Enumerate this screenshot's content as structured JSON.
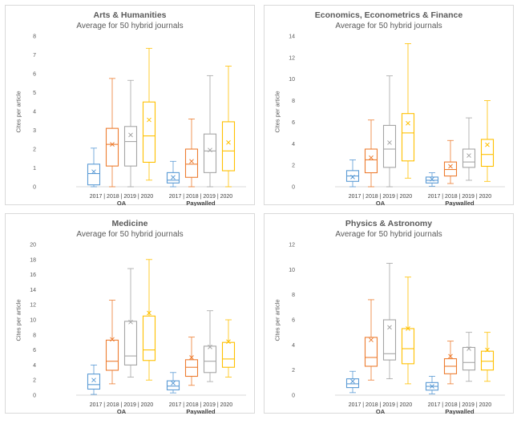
{
  "chart_data": [
    {
      "type": "box",
      "title": "Arts & Humanities",
      "subtitle": "Average for 50 hybrid journals",
      "ylabel": "Cites per article",
      "ylim": [
        0,
        8
      ],
      "yticks": [
        0,
        1,
        2,
        3,
        4,
        5,
        6,
        7,
        8
      ],
      "groups": [
        "OA",
        "Paywalled"
      ],
      "categories": [
        "2017",
        "2018",
        "2019",
        "2020"
      ],
      "series": [
        {
          "group": "OA",
          "year": "2017",
          "min": 0,
          "q1": 0.1,
          "median": 0.7,
          "q3": 1.2,
          "max": 2.05,
          "mean": 0.8
        },
        {
          "group": "OA",
          "year": "2018",
          "min": 0,
          "q1": 1.1,
          "median": 2.25,
          "q3": 3.1,
          "max": 5.75,
          "mean": 2.25
        },
        {
          "group": "OA",
          "year": "2019",
          "min": 0,
          "q1": 1.1,
          "median": 2.4,
          "q3": 3.2,
          "max": 5.65,
          "mean": 2.75
        },
        {
          "group": "OA",
          "year": "2020",
          "min": 0.35,
          "q1": 1.3,
          "median": 2.7,
          "q3": 4.5,
          "max": 7.35,
          "mean": 3.55
        },
        {
          "group": "Paywalled",
          "year": "2017",
          "min": 0,
          "q1": 0.2,
          "median": 0.35,
          "q3": 0.75,
          "max": 1.35,
          "mean": 0.5
        },
        {
          "group": "Paywalled",
          "year": "2018",
          "min": 0,
          "q1": 0.5,
          "median": 1.2,
          "q3": 2.0,
          "max": 3.6,
          "mean": 1.35
        },
        {
          "group": "Paywalled",
          "year": "2019",
          "min": 0,
          "q1": 0.75,
          "median": 1.9,
          "q3": 2.8,
          "max": 5.9,
          "mean": 1.95
        },
        {
          "group": "Paywalled",
          "year": "2020",
          "min": 0,
          "q1": 0.85,
          "median": 1.9,
          "q3": 3.45,
          "max": 6.4,
          "mean": 2.35
        }
      ]
    },
    {
      "type": "box",
      "title": "Economics, Econometrics & Finance",
      "subtitle": "Average for 50 hybrid journals",
      "ylabel": "Cites per article",
      "ylim": [
        0,
        14
      ],
      "yticks": [
        0,
        2,
        4,
        6,
        8,
        10,
        12,
        14
      ],
      "groups": [
        "OA",
        "Paywalled"
      ],
      "categories": [
        "2017",
        "2018",
        "2019",
        "2020"
      ],
      "series": [
        {
          "group": "OA",
          "year": "2017",
          "min": 0,
          "q1": 0.5,
          "median": 1.0,
          "q3": 1.5,
          "max": 2.5,
          "mean": 0.9
        },
        {
          "group": "OA",
          "year": "2018",
          "min": 0,
          "q1": 1.3,
          "median": 2.5,
          "q3": 3.5,
          "max": 6.2,
          "mean": 2.7
        },
        {
          "group": "OA",
          "year": "2019",
          "min": 0,
          "q1": 1.8,
          "median": 3.5,
          "q3": 5.7,
          "max": 10.3,
          "mean": 4.1
        },
        {
          "group": "OA",
          "year": "2020",
          "min": 0.8,
          "q1": 2.4,
          "median": 5.0,
          "q3": 6.8,
          "max": 13.3,
          "mean": 5.9
        },
        {
          "group": "Paywalled",
          "year": "2017",
          "min": 0.05,
          "q1": 0.35,
          "median": 0.6,
          "q3": 0.9,
          "max": 1.3,
          "mean": 0.7
        },
        {
          "group": "Paywalled",
          "year": "2018",
          "min": 0.3,
          "q1": 1.0,
          "median": 1.6,
          "q3": 2.3,
          "max": 4.3,
          "mean": 1.9
        },
        {
          "group": "Paywalled",
          "year": "2019",
          "min": 0.6,
          "q1": 1.8,
          "median": 2.3,
          "q3": 3.5,
          "max": 6.4,
          "mean": 2.9
        },
        {
          "group": "Paywalled",
          "year": "2020",
          "min": 0.5,
          "q1": 1.9,
          "median": 3.0,
          "q3": 4.4,
          "max": 8.0,
          "mean": 3.9
        }
      ]
    },
    {
      "type": "box",
      "title": "Medicine",
      "subtitle": "Average for 50 hybrid journals",
      "ylabel": "Cites per article",
      "ylim": [
        0,
        20
      ],
      "yticks": [
        0,
        2,
        4,
        6,
        8,
        10,
        12,
        14,
        16,
        18,
        20
      ],
      "groups": [
        "OA",
        "Paywalled"
      ],
      "categories": [
        "2017",
        "2018",
        "2019",
        "2020"
      ],
      "series": [
        {
          "group": "OA",
          "year": "2017",
          "min": 0.1,
          "q1": 0.8,
          "median": 1.4,
          "q3": 2.8,
          "max": 4.0,
          "mean": 2.0
        },
        {
          "group": "OA",
          "year": "2018",
          "min": 1.5,
          "q1": 3.3,
          "median": 4.5,
          "q3": 7.3,
          "max": 12.6,
          "mean": 7.4
        },
        {
          "group": "OA",
          "year": "2019",
          "min": 2.4,
          "q1": 4.0,
          "median": 5.2,
          "q3": 9.8,
          "max": 16.8,
          "mean": 9.7
        },
        {
          "group": "OA",
          "year": "2020",
          "min": 2.0,
          "q1": 4.6,
          "median": 6.0,
          "q3": 10.5,
          "max": 18.0,
          "mean": 10.9
        },
        {
          "group": "Paywalled",
          "year": "2017",
          "min": 0.3,
          "q1": 0.7,
          "median": 1.2,
          "q3": 1.9,
          "max": 3.0,
          "mean": 1.6
        },
        {
          "group": "Paywalled",
          "year": "2018",
          "min": 1.3,
          "q1": 2.5,
          "median": 3.7,
          "q3": 4.7,
          "max": 7.7,
          "mean": 5.0
        },
        {
          "group": "Paywalled",
          "year": "2019",
          "min": 1.8,
          "q1": 3.0,
          "median": 4.5,
          "q3": 6.5,
          "max": 11.2,
          "mean": 6.4
        },
        {
          "group": "Paywalled",
          "year": "2020",
          "min": 2.4,
          "q1": 3.7,
          "median": 4.8,
          "q3": 7.0,
          "max": 10.0,
          "mean": 7.1
        }
      ]
    },
    {
      "type": "box",
      "title": "Physics & Astronomy",
      "subtitle": "Average for 50 hybrid journals",
      "ylabel": "Cites per article",
      "ylim": [
        0,
        12
      ],
      "yticks": [
        0,
        2,
        4,
        6,
        8,
        10,
        12
      ],
      "groups": [
        "OA",
        "Paywalled"
      ],
      "categories": [
        "2017",
        "2018",
        "2019",
        "2020"
      ],
      "series": [
        {
          "group": "OA",
          "year": "2017",
          "min": 0.2,
          "q1": 0.6,
          "median": 0.9,
          "q3": 1.3,
          "max": 1.9,
          "mean": 1.1
        },
        {
          "group": "OA",
          "year": "2018",
          "min": 1.2,
          "q1": 2.3,
          "median": 3.0,
          "q3": 4.6,
          "max": 7.6,
          "mean": 4.4
        },
        {
          "group": "OA",
          "year": "2019",
          "min": 1.3,
          "q1": 2.8,
          "median": 3.3,
          "q3": 6.0,
          "max": 10.5,
          "mean": 5.4
        },
        {
          "group": "OA",
          "year": "2020",
          "min": 0.9,
          "q1": 2.5,
          "median": 3.7,
          "q3": 5.3,
          "max": 9.4,
          "mean": 5.3
        },
        {
          "group": "Paywalled",
          "year": "2017",
          "min": 0.1,
          "q1": 0.4,
          "median": 0.7,
          "q3": 1.0,
          "max": 1.5,
          "mean": 0.7
        },
        {
          "group": "Paywalled",
          "year": "2018",
          "min": 0.9,
          "q1": 1.7,
          "median": 2.3,
          "q3": 2.9,
          "max": 4.3,
          "mean": 3.1
        },
        {
          "group": "Paywalled",
          "year": "2019",
          "min": 1.1,
          "q1": 2.0,
          "median": 2.6,
          "q3": 3.8,
          "max": 5.0,
          "mean": 3.7
        },
        {
          "group": "Paywalled",
          "year": "2020",
          "min": 1.1,
          "q1": 2.0,
          "median": 2.7,
          "q3": 3.5,
          "max": 5.0,
          "mean": 3.6
        }
      ]
    }
  ],
  "year_colors": {
    "2017": "#5b9bd5",
    "2018": "#ed7d31",
    "2019": "#a5a5a5",
    "2020": "#ffc000"
  },
  "axis_labels": {
    "oa_years": "2017 | 2018 | 2019 | 2020",
    "pw_years": "2017 | 2018 | 2019 | 2020"
  }
}
